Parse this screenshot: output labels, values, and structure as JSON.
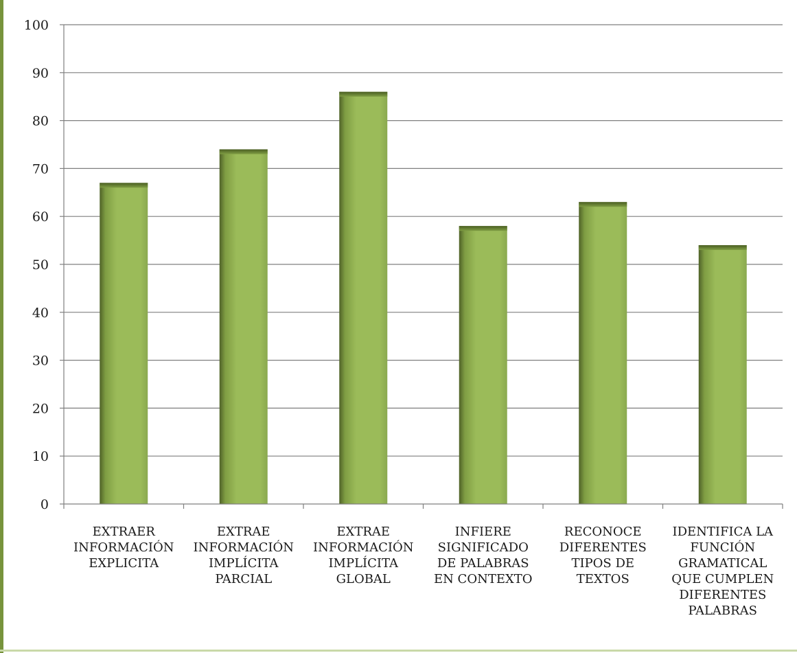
{
  "chart_data": {
    "type": "bar",
    "title": "",
    "xlabel": "",
    "ylabel": "",
    "categories": [
      [
        "EXTRAER",
        "INFORMACIÓN",
        "EXPLICITA"
      ],
      [
        "EXTRAE",
        "INFORMACIÓN",
        "IMPLÍCITA",
        "PARCIAL"
      ],
      [
        "EXTRAE",
        "INFORMACIÓN",
        "IMPLÍCITA",
        "GLOBAL"
      ],
      [
        "INFIERE",
        "SIGNIFICADO",
        "DE PALABRAS",
        "EN CONTEXTO"
      ],
      [
        "RECONOCE",
        "DIFERENTES",
        "TIPOS DE",
        "TEXTOS"
      ],
      [
        "IDENTIFICA LA",
        "FUNCIÓN",
        "GRAMATICAL",
        "QUE CUMPLEN",
        "DIFERENTES",
        "PALABRAS"
      ]
    ],
    "values": [
      67,
      74,
      86,
      58,
      63,
      54
    ],
    "ylim": [
      0,
      100
    ],
    "yticks": [
      "0",
      "10",
      "20",
      "30",
      "40",
      "50",
      "60",
      "70",
      "80",
      "90",
      "100"
    ],
    "grid": true,
    "legend": "none",
    "colors": {
      "bar_light": "#9bbb59",
      "bar_mid": "#8fb04e",
      "bar_dark": "#4f6228",
      "bar_top": "#5c7a2a",
      "grid": "#7f7f7f",
      "left_accent": "#77933c"
    }
  }
}
